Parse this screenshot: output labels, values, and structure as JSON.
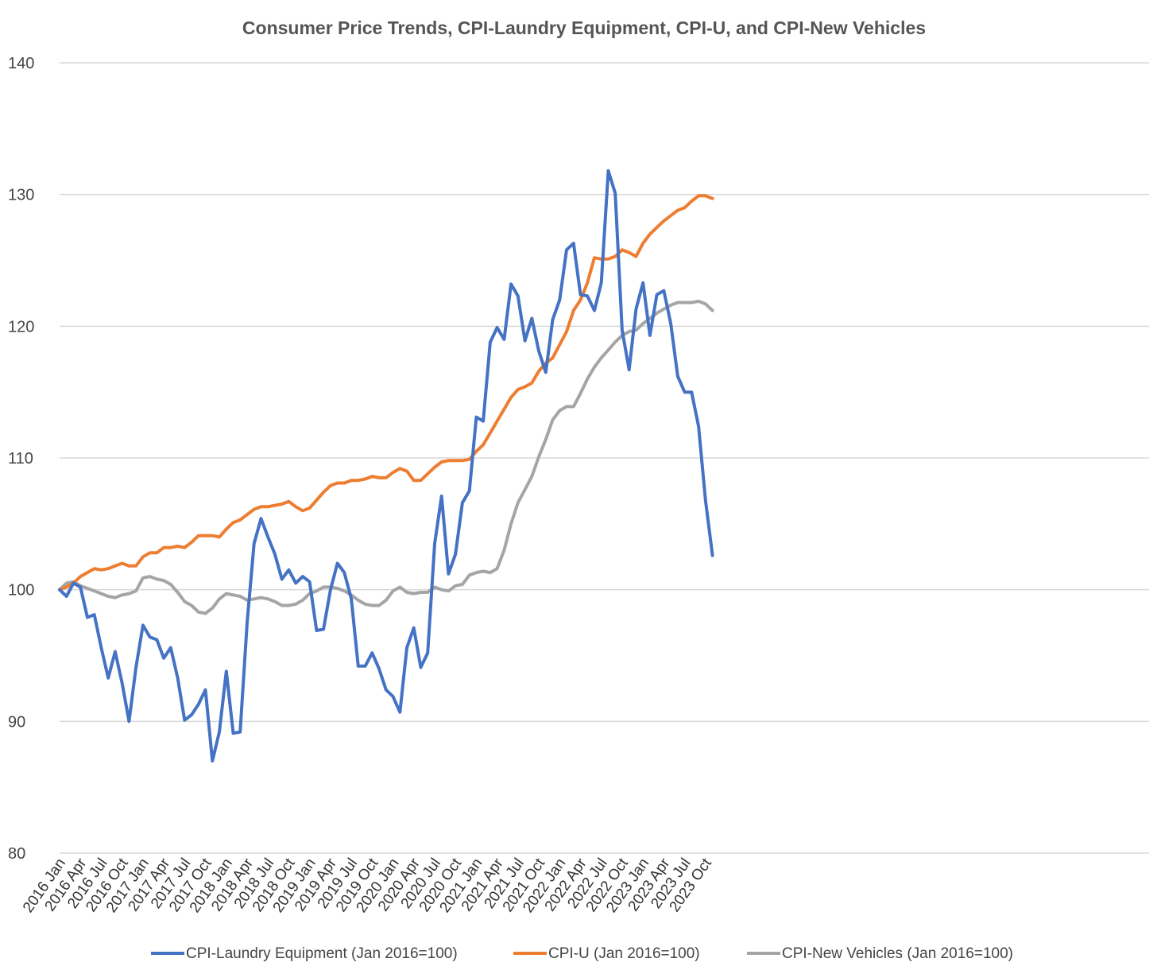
{
  "chart_data": {
    "type": "line",
    "title": "Consumer Price Trends, CPI-Laundry Equipment, CPI-U, and CPI-New Vehicles",
    "xlabel": "",
    "ylabel": "",
    "ylim": [
      80,
      140
    ],
    "yticks": [
      "80",
      "90",
      "100",
      "110",
      "120",
      "130",
      "140"
    ],
    "grid": "horizontal",
    "legend_position": "bottom",
    "x_tick_labels": [
      "2016 Jan",
      "2016 Apr",
      "2016 Jul",
      "2016 Oct",
      "2017 Jan",
      "2017 Apr",
      "2017 Jul",
      "2017 Oct",
      "2018 Jan",
      "2018 Apr",
      "2018 Jul",
      "2018 Oct",
      "2019 Jan",
      "2019 Apr",
      "2019 Jul",
      "2019 Oct",
      "2020 Jan",
      "2020 Apr",
      "2020 Jul",
      "2020 Oct",
      "2021 Jan",
      "2021 Apr",
      "2021 Jul",
      "2021 Oct",
      "2022 Jan",
      "2022 Apr",
      "2022 Jul",
      "2022 Oct",
      "2023 Jan",
      "2023 Apr",
      "2023 Jul",
      "2023 Oct"
    ],
    "x_start": "2016 Jan",
    "x_end": "2023 Dec",
    "series": [
      {
        "name": "CPI-Laundry Equipment (Jan 2016=100)",
        "color": "#4472C4",
        "values": [
          100,
          99.5,
          100.5,
          100.2,
          97.9,
          98.1,
          95.6,
          93.3,
          95.3,
          92.9,
          90.0,
          94.1,
          97.3,
          96.4,
          96.2,
          94.8,
          95.6,
          93.3,
          90.1,
          90.5,
          91.3,
          92.4,
          87.0,
          89.2,
          93.8,
          89.1,
          89.2,
          97.5,
          103.5,
          105.4,
          104.0,
          102.7,
          100.8,
          101.5,
          100.5,
          101.0,
          100.6,
          96.9,
          97.0,
          100.0,
          102.0,
          101.3,
          99.3,
          94.2,
          94.2,
          95.2,
          94.0,
          92.4,
          91.9,
          90.7,
          95.6,
          97.1,
          94.1,
          95.2,
          103.5,
          107.1,
          101.2,
          102.7,
          106.6,
          107.5,
          113.1,
          112.8,
          118.8,
          119.9,
          119.0,
          123.2,
          122.3,
          118.9,
          120.6,
          118.1,
          116.5,
          120.5,
          122.0,
          125.8,
          126.3,
          122.4,
          122.3,
          121.2,
          123.3,
          131.8,
          130.1,
          119.7,
          116.7,
          121.3,
          123.3,
          119.3,
          122.4,
          122.7,
          120.2,
          116.2,
          115.0,
          115.0,
          112.4,
          106.8,
          102.6
        ]
      },
      {
        "name": "CPI-U (Jan 2016=100)",
        "color": "#ED7D31",
        "values": [
          100,
          100.2,
          100.5,
          101.0,
          101.3,
          101.6,
          101.5,
          101.6,
          101.8,
          102.0,
          101.8,
          101.8,
          102.5,
          102.8,
          102.8,
          103.2,
          103.2,
          103.3,
          103.2,
          103.6,
          104.1,
          104.1,
          104.1,
          104.0,
          104.6,
          105.1,
          105.3,
          105.7,
          106.1,
          106.3,
          106.3,
          106.4,
          106.5,
          106.7,
          106.3,
          106.0,
          106.2,
          106.8,
          107.4,
          107.9,
          108.1,
          108.1,
          108.3,
          108.3,
          108.4,
          108.6,
          108.5,
          108.5,
          108.9,
          109.2,
          109.0,
          108.3,
          108.3,
          108.8,
          109.3,
          109.7,
          109.8,
          109.8,
          109.8,
          109.9,
          110.5,
          111.0,
          111.9,
          112.8,
          113.7,
          114.6,
          115.2,
          115.4,
          115.7,
          116.6,
          117.2,
          117.6,
          118.6,
          119.6,
          121.2,
          122.0,
          123.3,
          125.2,
          125.1,
          125.1,
          125.3,
          125.8,
          125.6,
          125.3,
          126.3,
          127.0,
          127.5,
          128.0,
          128.4,
          128.8,
          129.0,
          129.5,
          129.9,
          129.9,
          129.7
        ]
      },
      {
        "name": "CPI-New Vehicles (Jan 2016=100)",
        "color": "#A5A5A5",
        "values": [
          100,
          100.5,
          100.6,
          100.3,
          100.1,
          99.9,
          99.7,
          99.5,
          99.4,
          99.6,
          99.7,
          99.9,
          100.9,
          101.0,
          100.8,
          100.7,
          100.4,
          99.8,
          99.1,
          98.8,
          98.3,
          98.2,
          98.6,
          99.3,
          99.7,
          99.6,
          99.5,
          99.2,
          99.3,
          99.4,
          99.3,
          99.1,
          98.8,
          98.8,
          98.9,
          99.2,
          99.7,
          99.9,
          100.2,
          100.2,
          100.1,
          99.9,
          99.6,
          99.2,
          98.9,
          98.8,
          98.8,
          99.2,
          99.9,
          100.2,
          99.8,
          99.7,
          99.8,
          99.8,
          100.2,
          100.0,
          99.9,
          100.3,
          100.4,
          101.1,
          101.3,
          101.4,
          101.3,
          101.6,
          103.0,
          105.0,
          106.6,
          107.6,
          108.6,
          110.1,
          111.4,
          112.9,
          113.6,
          113.9,
          113.9,
          114.9,
          116.0,
          116.9,
          117.6,
          118.2,
          118.8,
          119.3,
          119.6,
          119.7,
          120.2,
          120.6,
          121.0,
          121.3,
          121.6,
          121.8,
          121.8,
          121.8,
          121.9,
          121.7,
          121.2
        ]
      }
    ]
  }
}
